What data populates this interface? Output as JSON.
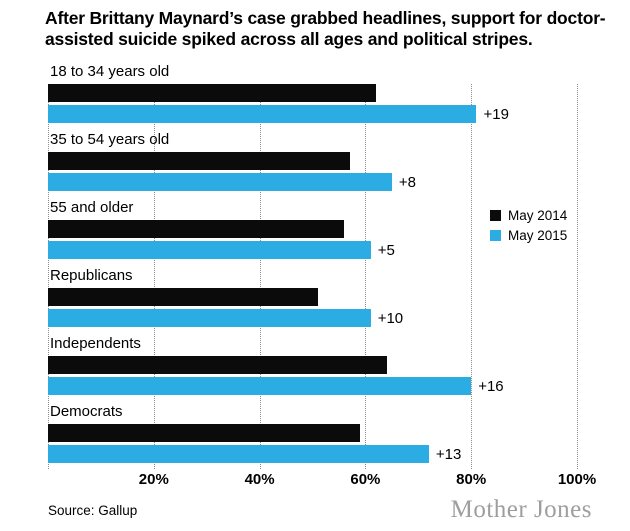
{
  "header": {
    "title_line1": "After Brittany Maynard’s case grabbed headlines, support for doctor-",
    "title_line2": "assisted suicide spiked across all ages and political stripes."
  },
  "chart_data": {
    "type": "bar",
    "orientation": "horizontal",
    "title": "After Brittany Maynard’s case grabbed headlines, support for doctor-assisted suicide spiked across all ages and political stripes.",
    "categories": [
      "18 to 34 years old",
      "35 to 54 years old",
      "55 and older",
      "Republicans",
      "Independents",
      "Democrats"
    ],
    "series": [
      {
        "name": "May 2014",
        "color": "#0b0b0b",
        "values": [
          62,
          57,
          56,
          51,
          64,
          59
        ]
      },
      {
        "name": "May 2015",
        "color": "#2bace2",
        "values": [
          81,
          65,
          61,
          61,
          80,
          72
        ]
      }
    ],
    "annotations": [
      "+19",
      "+8",
      "+5",
      "+10",
      "+16",
      "+13"
    ],
    "x_ticks": [
      "20%",
      "40%",
      "60%",
      "80%",
      "100%"
    ],
    "x_tick_positions": [
      20,
      40,
      60,
      80,
      100
    ],
    "xlim": [
      0,
      100
    ],
    "grid": "vertical-dotted",
    "gridline_positions": [
      0,
      20,
      40,
      60,
      80,
      100
    ],
    "legend_position": "middle-right",
    "xlabel": "",
    "ylabel": ""
  },
  "footer": {
    "source": "Source: Gallup",
    "branding": "Mother Jones"
  }
}
